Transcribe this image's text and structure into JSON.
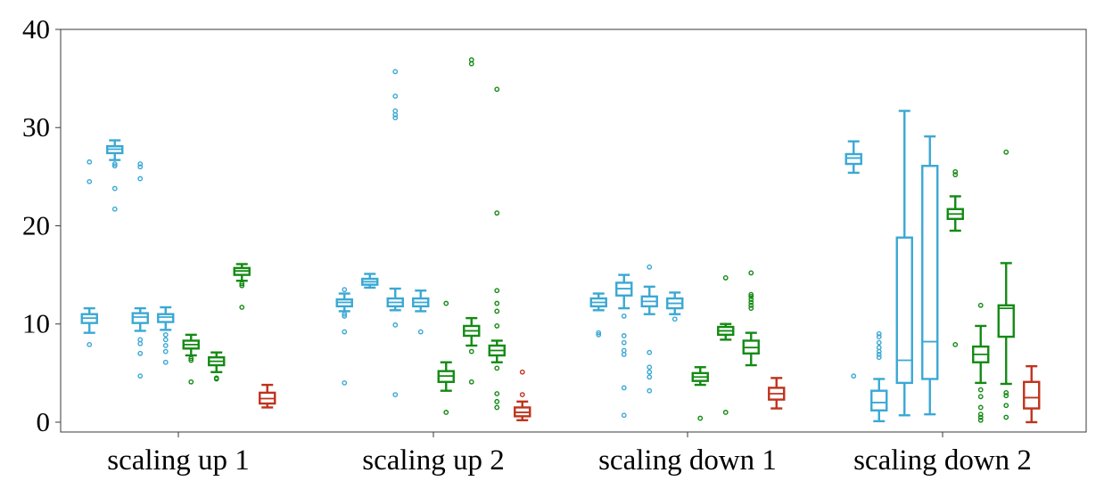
{
  "chart_data": {
    "type": "box",
    "title": "",
    "xlabel": "",
    "ylabel": "",
    "ylim": [
      -1,
      40
    ],
    "yticks": [
      0,
      10,
      20,
      30,
      40
    ],
    "y_tick_labels": [
      "0",
      "10",
      "20",
      "30",
      "40"
    ],
    "grid": false,
    "legend": "none",
    "colors": {
      "blue": "#3aa8d4",
      "green": "#138a13",
      "red": "#c0321c"
    },
    "categories": [
      "scaling up 1",
      "scaling up 2",
      "scaling down 1",
      "scaling down 2"
    ],
    "groups": [
      {
        "category": "scaling up 1",
        "boxes": [
          {
            "color": "blue",
            "whislo": 9.1,
            "q1": 10.1,
            "med": 10.6,
            "q3": 11.0,
            "whishi": 11.6,
            "fliers": [
              7.9,
              24.5,
              26.5
            ]
          },
          {
            "color": "blue",
            "whislo": 26.7,
            "q1": 27.4,
            "med": 27.8,
            "q3": 28.1,
            "whishi": 28.7,
            "fliers": [
              21.7,
              23.8,
              26.1,
              26.3
            ]
          },
          {
            "color": "blue",
            "whislo": 9.3,
            "q1": 10.1,
            "med": 10.7,
            "q3": 11.1,
            "whishi": 11.6,
            "fliers": [
              4.7,
              7.0,
              8.0,
              8.4,
              24.8,
              26.0,
              26.3
            ]
          },
          {
            "color": "blue",
            "whislo": 9.4,
            "q1": 10.2,
            "med": 10.7,
            "q3": 11.0,
            "whishi": 11.7,
            "fliers": [
              6.1,
              7.2,
              7.8,
              8.4,
              8.9
            ]
          },
          {
            "color": "green",
            "whislo": 6.8,
            "q1": 7.5,
            "med": 7.9,
            "q3": 8.3,
            "whishi": 8.9,
            "fliers": [
              4.1,
              6.3,
              6.5
            ]
          },
          {
            "color": "green",
            "whislo": 5.1,
            "q1": 5.8,
            "med": 6.2,
            "q3": 6.6,
            "whishi": 7.1,
            "fliers": [
              4.4,
              4.5
            ]
          },
          {
            "color": "green",
            "whislo": 14.4,
            "q1": 15.0,
            "med": 15.4,
            "q3": 15.7,
            "whishi": 16.1,
            "fliers": [
              11.7,
              13.9,
              14.1
            ]
          },
          {
            "color": "red",
            "whislo": 1.5,
            "q1": 1.9,
            "med": 2.4,
            "q3": 3.0,
            "whishi": 3.8,
            "fliers": []
          }
        ]
      },
      {
        "category": "scaling up 2",
        "boxes": [
          {
            "color": "blue",
            "whislo": 11.3,
            "q1": 11.8,
            "med": 12.2,
            "q3": 12.5,
            "whishi": 13.1,
            "fliers": [
              4.0,
              9.2,
              10.8,
              11.0,
              13.5
            ]
          },
          {
            "color": "blue",
            "whislo": 13.7,
            "q1": 14.0,
            "med": 14.3,
            "q3": 14.6,
            "whishi": 15.1,
            "fliers": []
          },
          {
            "color": "blue",
            "whislo": 11.4,
            "q1": 11.8,
            "med": 12.2,
            "q3": 12.6,
            "whishi": 13.6,
            "fliers": [
              2.8,
              9.9,
              31.0,
              31.3,
              31.7,
              33.2,
              35.7
            ]
          },
          {
            "color": "blue",
            "whislo": 11.3,
            "q1": 11.8,
            "med": 12.2,
            "q3": 12.6,
            "whishi": 13.4,
            "fliers": [
              9.2
            ]
          },
          {
            "color": "green",
            "whislo": 3.2,
            "q1": 4.1,
            "med": 4.7,
            "q3": 5.2,
            "whishi": 6.1,
            "fliers": [
              1.0,
              12.1
            ]
          },
          {
            "color": "green",
            "whislo": 7.8,
            "q1": 8.8,
            "med": 9.3,
            "q3": 9.8,
            "whishi": 10.6,
            "fliers": [
              4.1,
              7.2,
              36.5,
              36.9
            ]
          },
          {
            "color": "green",
            "whislo": 6.1,
            "q1": 6.8,
            "med": 7.3,
            "q3": 7.8,
            "whishi": 8.3,
            "fliers": [
              1.5,
              2.1,
              2.9,
              5.5,
              9.8,
              11.3,
              12.1,
              13.4,
              21.3,
              33.9
            ]
          },
          {
            "color": "red",
            "whislo": 0.2,
            "q1": 0.6,
            "med": 1.0,
            "q3": 1.5,
            "whishi": 2.1,
            "fliers": [
              2.8,
              5.1
            ]
          }
        ]
      },
      {
        "category": "scaling down 1",
        "boxes": [
          {
            "color": "blue",
            "whislo": 11.4,
            "q1": 11.8,
            "med": 12.2,
            "q3": 12.6,
            "whishi": 13.1,
            "fliers": [
              8.9,
              9.1
            ]
          },
          {
            "color": "blue",
            "whislo": 11.6,
            "q1": 12.9,
            "med": 13.6,
            "q3": 14.2,
            "whishi": 15.0,
            "fliers": [
              0.7,
              3.5,
              6.9,
              7.3,
              8.1,
              8.8,
              10.8
            ]
          },
          {
            "color": "blue",
            "whislo": 11.0,
            "q1": 11.8,
            "med": 12.3,
            "q3": 12.8,
            "whishi": 13.8,
            "fliers": [
              3.2,
              4.6,
              5.1,
              5.6,
              7.1,
              15.8
            ]
          },
          {
            "color": "blue",
            "whislo": 11.0,
            "q1": 11.6,
            "med": 12.1,
            "q3": 12.6,
            "whishi": 13.2,
            "fliers": [
              10.5
            ]
          },
          {
            "color": "green",
            "whislo": 3.8,
            "q1": 4.2,
            "med": 4.6,
            "q3": 5.0,
            "whishi": 5.6,
            "fliers": [
              0.4
            ]
          },
          {
            "color": "green",
            "whislo": 8.4,
            "q1": 8.9,
            "med": 9.3,
            "q3": 9.7,
            "whishi": 10.0,
            "fliers": [
              1.0,
              14.7
            ]
          },
          {
            "color": "green",
            "whislo": 5.8,
            "q1": 7.0,
            "med": 7.6,
            "q3": 8.3,
            "whishi": 9.1,
            "fliers": [
              11.6,
              11.9,
              12.2,
              12.5,
              12.8,
              13.0,
              15.2
            ]
          },
          {
            "color": "red",
            "whislo": 1.4,
            "q1": 2.3,
            "med": 2.9,
            "q3": 3.5,
            "whishi": 4.5,
            "fliers": []
          }
        ]
      },
      {
        "category": "scaling down 2",
        "boxes": [
          {
            "color": "blue",
            "whislo": 25.4,
            "q1": 26.3,
            "med": 26.9,
            "q3": 27.3,
            "whishi": 28.6,
            "fliers": [
              4.7
            ]
          },
          {
            "color": "blue",
            "whislo": 0.1,
            "q1": 1.2,
            "med": 2.0,
            "q3": 3.2,
            "whishi": 4.4,
            "fliers": [
              6.6,
              6.9,
              7.2,
              7.6,
              8.1,
              8.7,
              9.0
            ]
          },
          {
            "color": "blue",
            "whislo": 0.7,
            "q1": 4.0,
            "med": 6.3,
            "q3": 18.8,
            "whishi": 31.7,
            "fliers": []
          },
          {
            "color": "blue",
            "whislo": 0.8,
            "q1": 4.4,
            "med": 8.2,
            "q3": 26.1,
            "whishi": 29.1,
            "fliers": []
          },
          {
            "color": "green",
            "whislo": 19.5,
            "q1": 20.7,
            "med": 21.2,
            "q3": 21.7,
            "whishi": 23.0,
            "fliers": [
              7.9,
              25.2,
              25.5
            ]
          },
          {
            "color": "green",
            "whislo": 4.0,
            "q1": 6.1,
            "med": 6.9,
            "q3": 7.7,
            "whishi": 9.8,
            "fliers": [
              0.2,
              0.5,
              0.8,
              1.5,
              2.6,
              3.3,
              11.9
            ]
          },
          {
            "color": "green",
            "whislo": 3.9,
            "q1": 8.7,
            "med": 11.6,
            "q3": 11.9,
            "whishi": 16.2,
            "fliers": [
              0.5,
              1.7,
              2.7,
              3.0,
              27.5
            ]
          },
          {
            "color": "red",
            "whislo": 0.0,
            "q1": 1.4,
            "med": 2.5,
            "q3": 4.1,
            "whishi": 5.7,
            "fliers": []
          }
        ]
      }
    ]
  }
}
